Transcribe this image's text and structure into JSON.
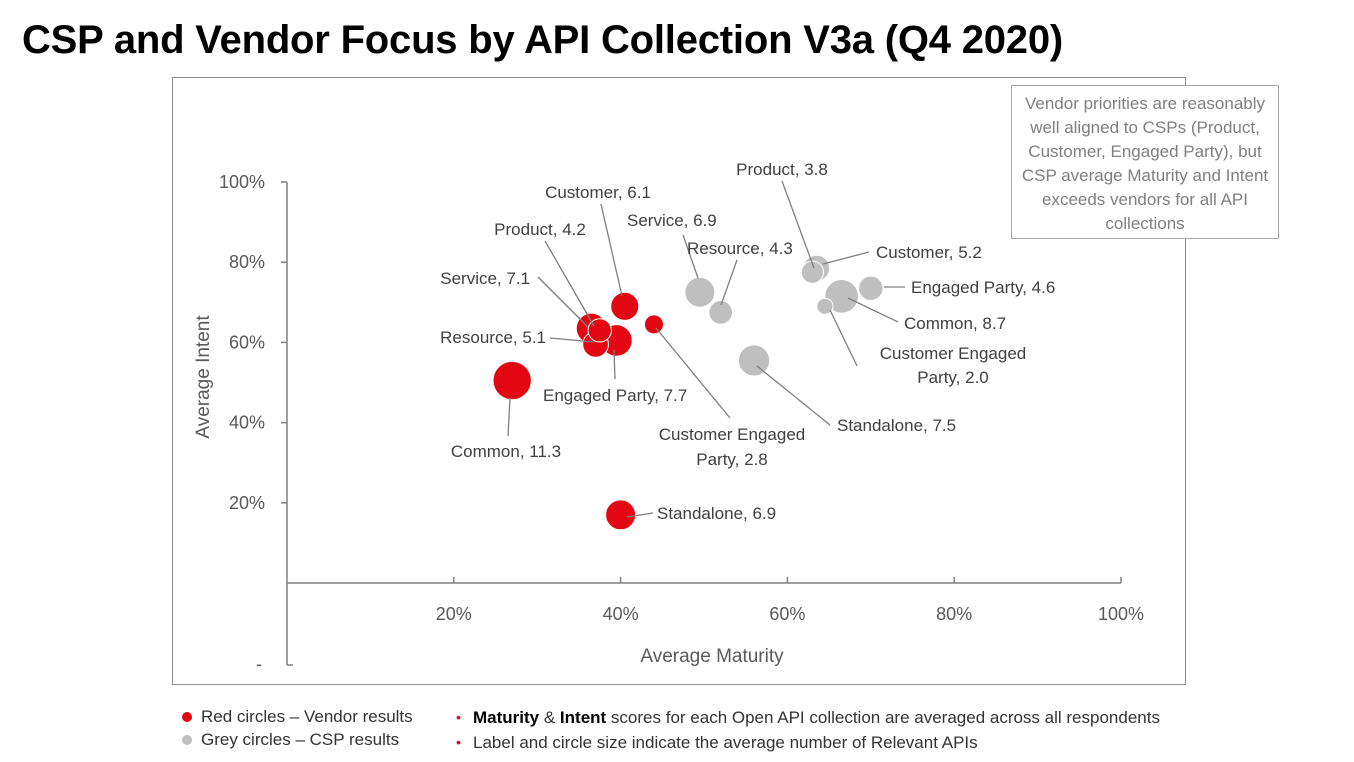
{
  "page": {
    "title": "CSP and Vendor Focus by API Collection V3a (Q4 2020)"
  },
  "callout": {
    "text": "Vendor priorities are reasonably well aligned to CSPs (Product, Customer, Engaged Party), but CSP average Maturity and Intent exceeds vendors for all API collections"
  },
  "legend": {
    "vendor": {
      "label": "Red circles – Vendor results",
      "color": "#e30613"
    },
    "csp": {
      "label": "Grey circles – CSP results",
      "color": "#bfbfbf"
    }
  },
  "notes": {
    "n1_bold_a": "Maturity",
    "n1_mid": " & ",
    "n1_bold_b": "Intent",
    "n1_rest": " scores for each Open API collection are averaged across all respondents",
    "n2": "Label and circle size indicate the average number of Relevant APIs"
  },
  "chart_data": {
    "type": "scatter",
    "xlabel": "Average Maturity",
    "ylabel": "Average Intent",
    "xlim": [
      0,
      100
    ],
    "ylim": [
      0,
      100
    ],
    "x_ticks": [
      "20%",
      "40%",
      "60%",
      "80%",
      "100%"
    ],
    "y_ticks": [
      "20%",
      "40%",
      "60%",
      "80%",
      "100%"
    ],
    "y_bottom_tick": "-",
    "series": [
      {
        "name": "Red circles – Vendor results",
        "color": "#e30613",
        "points": [
          {
            "label": "Common, 11.3",
            "x": 27.0,
            "y": 50.5,
            "size": 11.3
          },
          {
            "label": "Engaged Party, 7.7",
            "x": 39.5,
            "y": 60.5,
            "size": 7.7
          },
          {
            "label": "Service, 7.1",
            "x": 36.5,
            "y": 63.5,
            "size": 7.1
          },
          {
            "label": "Standalone, 6.9",
            "x": 40.0,
            "y": 17.0,
            "size": 6.9
          },
          {
            "label": "Customer, 6.1",
            "x": 40.5,
            "y": 69.0,
            "size": 6.1
          },
          {
            "label": "Resource, 5.1",
            "x": 37.0,
            "y": 59.5,
            "size": 5.1
          },
          {
            "label": "Product, 4.2",
            "x": 37.5,
            "y": 63.0,
            "size": 4.2
          },
          {
            "label": "Customer Engaged Party, 2.8",
            "x": 44.0,
            "y": 64.5,
            "size": 2.8
          }
        ]
      },
      {
        "name": "Grey circles – CSP results",
        "color": "#bfbfbf",
        "points": [
          {
            "label": "Common, 8.7",
            "x": 66.5,
            "y": 71.5,
            "size": 8.7
          },
          {
            "label": "Standalone, 7.5",
            "x": 56.0,
            "y": 55.5,
            "size": 7.5
          },
          {
            "label": "Service, 6.9",
            "x": 49.5,
            "y": 72.5,
            "size": 6.9
          },
          {
            "label": "Customer, 5.2",
            "x": 63.5,
            "y": 78.5,
            "size": 5.2
          },
          {
            "label": "Engaged Party, 4.6",
            "x": 70.0,
            "y": 73.5,
            "size": 4.6
          },
          {
            "label": "Resource, 4.3",
            "x": 52.0,
            "y": 67.5,
            "size": 4.3
          },
          {
            "label": "Product, 3.8",
            "x": 63.0,
            "y": 77.5,
            "size": 3.8
          },
          {
            "label": "Customer Engaged Party, 2.0",
            "x": 64.5,
            "y": 69.0,
            "size": 2.0
          }
        ]
      }
    ]
  }
}
